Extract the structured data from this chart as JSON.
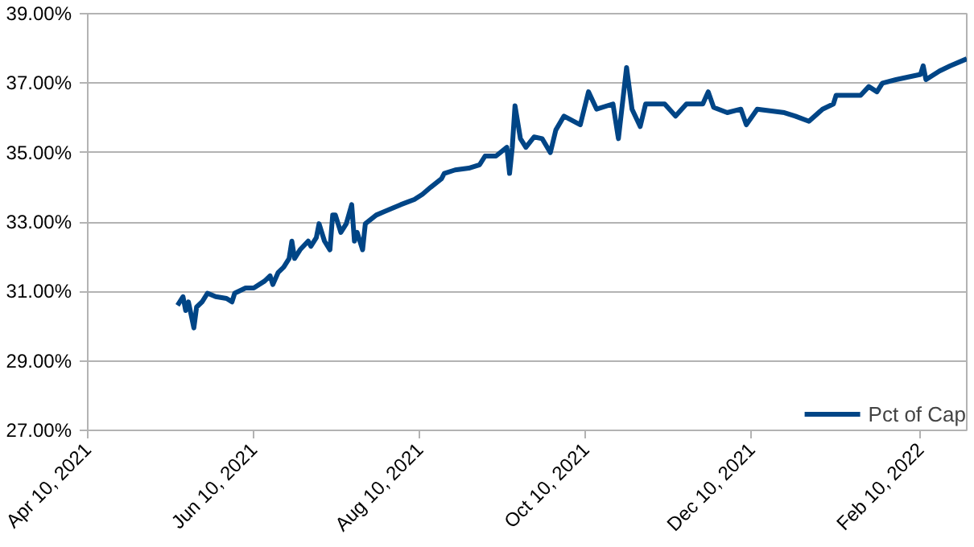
{
  "chart_data": {
    "type": "line",
    "x": [
      "2021-05-13",
      "2021-05-15",
      "2021-05-16",
      "2021-05-17",
      "2021-05-19",
      "2021-05-20",
      "2021-05-22",
      "2021-05-24",
      "2021-05-27",
      "2021-05-31",
      "2021-06-02",
      "2021-06-03",
      "2021-06-07",
      "2021-06-10",
      "2021-06-14",
      "2021-06-16",
      "2021-06-17",
      "2021-06-19",
      "2021-06-21",
      "2021-06-23",
      "2021-06-24",
      "2021-06-25",
      "2021-06-27",
      "2021-06-30",
      "2021-07-01",
      "2021-07-03",
      "2021-07-04",
      "2021-07-06",
      "2021-07-08",
      "2021-07-09",
      "2021-07-10",
      "2021-07-12",
      "2021-07-14",
      "2021-07-16",
      "2021-07-17",
      "2021-07-18",
      "2021-07-20",
      "2021-07-21",
      "2021-07-25",
      "2021-07-28",
      "2021-08-03",
      "2021-08-08",
      "2021-08-11",
      "2021-08-14",
      "2021-08-18",
      "2021-08-19",
      "2021-08-23",
      "2021-08-28",
      "2021-09-01",
      "2021-09-03",
      "2021-09-07",
      "2021-09-11",
      "2021-09-12",
      "2021-09-13",
      "2021-09-14",
      "2021-09-16",
      "2021-09-18",
      "2021-09-21",
      "2021-09-24",
      "2021-09-27",
      "2021-09-29",
      "2021-10-02",
      "2021-10-08",
      "2021-10-11",
      "2021-10-14",
      "2021-10-20",
      "2021-10-22",
      "2021-10-25",
      "2021-10-27",
      "2021-10-30",
      "2021-11-01",
      "2021-11-08",
      "2021-11-12",
      "2021-11-16",
      "2021-11-22",
      "2021-11-24",
      "2021-11-26",
      "2021-12-01",
      "2021-12-06",
      "2021-12-08",
      "2021-12-12",
      "2021-12-22",
      "2021-12-26",
      "2021-12-31",
      "2022-01-05",
      "2022-01-09",
      "2022-01-10",
      "2022-01-19",
      "2022-01-22",
      "2022-01-25",
      "2022-01-27",
      "2022-02-01",
      "2022-02-10",
      "2022-02-11",
      "2022-02-12",
      "2022-02-17",
      "2022-02-21",
      "2022-02-27"
    ],
    "series": [
      {
        "name": "Pct of Cap",
        "color": "#004586",
        "values": [
          30.6,
          30.85,
          30.45,
          30.7,
          29.95,
          30.55,
          30.7,
          30.95,
          30.85,
          30.8,
          30.7,
          30.95,
          31.1,
          31.1,
          31.3,
          31.45,
          31.2,
          31.55,
          31.7,
          31.95,
          32.45,
          31.95,
          32.2,
          32.45,
          32.3,
          32.55,
          32.95,
          32.45,
          32.2,
          33.2,
          33.2,
          32.7,
          32.95,
          33.5,
          32.45,
          32.7,
          32.2,
          32.95,
          33.2,
          33.3,
          33.5,
          33.65,
          33.8,
          34.0,
          34.25,
          34.4,
          34.5,
          34.55,
          34.65,
          34.9,
          34.9,
          35.15,
          34.4,
          35.15,
          36.35,
          35.4,
          35.15,
          35.45,
          35.4,
          35.0,
          35.65,
          36.05,
          35.8,
          36.75,
          36.25,
          36.4,
          35.4,
          37.45,
          36.25,
          35.75,
          36.4,
          36.4,
          36.05,
          36.4,
          36.4,
          36.75,
          36.3,
          36.15,
          36.25,
          35.8,
          36.25,
          36.15,
          36.05,
          35.9,
          36.25,
          36.4,
          36.65,
          36.65,
          36.9,
          36.75,
          37.0,
          37.1,
          37.25,
          37.5,
          37.1,
          37.35,
          37.5,
          37.7
        ]
      }
    ],
    "xlim": [
      "2021-04-10",
      "2022-02-27"
    ],
    "xticks": [
      {
        "value": "2021-04-10",
        "label": "Apr 10, 2021"
      },
      {
        "value": "2021-06-10",
        "label": "Jun 10, 2021"
      },
      {
        "value": "2021-08-10",
        "label": "Aug 10, 2021"
      },
      {
        "value": "2021-10-10",
        "label": "Oct 10, 2021"
      },
      {
        "value": "2021-12-10",
        "label": "Dec 10, 2021"
      },
      {
        "value": "2022-02-10",
        "label": "Feb 10, 2022"
      }
    ],
    "ylim": [
      27,
      39
    ],
    "yticks": [
      {
        "value": 27,
        "label": "27.00%"
      },
      {
        "value": 29,
        "label": "29.00%"
      },
      {
        "value": 31,
        "label": "31.00%"
      },
      {
        "value": 33,
        "label": "33.00%"
      },
      {
        "value": 35,
        "label": "35.00%"
      },
      {
        "value": 37,
        "label": "37.00%"
      },
      {
        "value": 39,
        "label": "39.00%"
      }
    ],
    "grid": "y",
    "legend": "bottom right",
    "line_style": "solid"
  }
}
